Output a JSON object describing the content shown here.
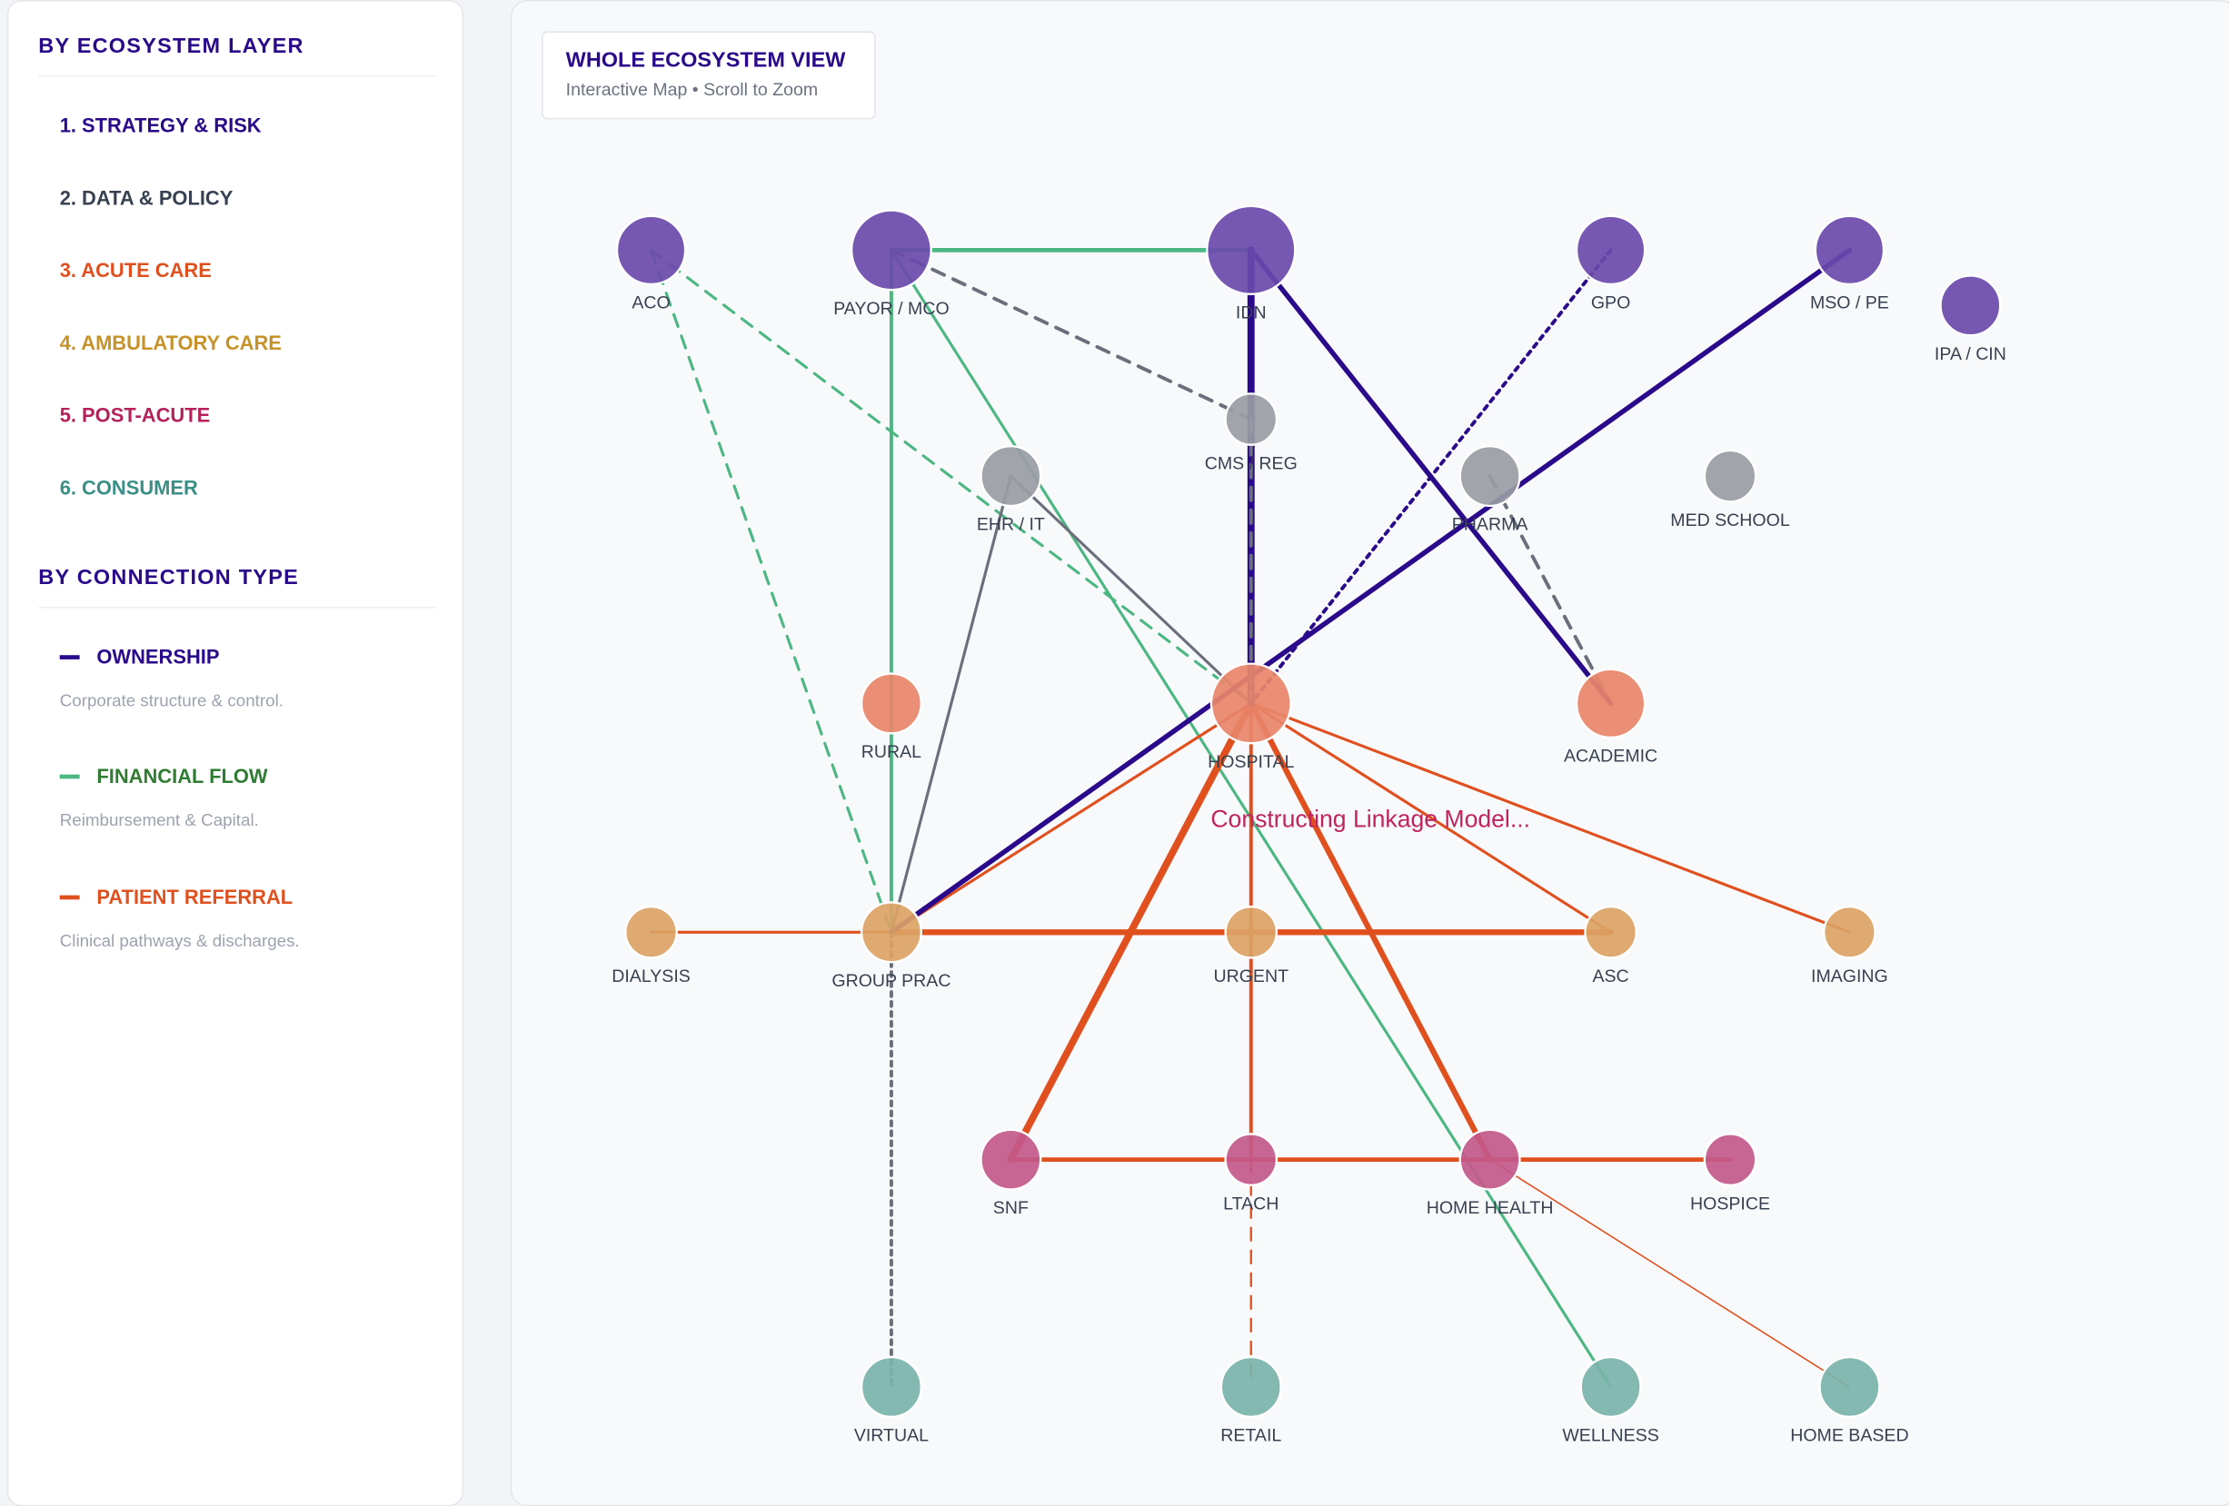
{
  "sidebar": {
    "layer_title": "BY ECOSYSTEM LAYER",
    "layers": [
      {
        "label": "1. STRATEGY & RISK",
        "color": "#2a0a8a"
      },
      {
        "label": "2. DATA & POLICY",
        "color": "#374151"
      },
      {
        "label": "3. ACUTE CARE",
        "color": "#e0501f"
      },
      {
        "label": "4. AMBULATORY CARE",
        "color": "#c8922a"
      },
      {
        "label": "5. POST-ACUTE",
        "color": "#b5215a"
      },
      {
        "label": "6. CONSUMER",
        "color": "#3a8f86"
      }
    ],
    "connection_title": "BY CONNECTION TYPE",
    "connections": [
      {
        "label": "OWNERSHIP",
        "desc": "Corporate structure & control.",
        "color": "#2a0a8a",
        "text_color": "#2a0a8a"
      },
      {
        "label": "FINANCIAL FLOW",
        "desc": "Reimbursement & Capital.",
        "color": "#4cb782",
        "text_color": "#2e7d32"
      },
      {
        "label": "PATIENT REFERRAL",
        "desc": "Clinical pathways & discharges.",
        "color": "#e0501f",
        "text_color": "#e0501f"
      }
    ]
  },
  "map": {
    "title": "WHOLE ECOSYSTEM VIEW",
    "subtitle": "Interactive Map • Scroll to Zoom",
    "status": "Constructing Linkage Model...",
    "layer_colors": {
      "strategy": "#6a4aad",
      "data": "#9a9ca4",
      "acute": "#e8866a",
      "ambulatory": "#dca365",
      "postacute": "#c2588a",
      "consumer": "#78b3a9"
    },
    "edge_colors": {
      "ownership": "#2a0a8a",
      "financial": "#4cb782",
      "data": "#6b6f7b",
      "referral": "#e0501f"
    },
    "nodes": [
      {
        "id": "aco",
        "label": "ACO",
        "layer": "strategy"
      },
      {
        "id": "payor",
        "label": "PAYOR / MCO",
        "layer": "strategy"
      },
      {
        "id": "idn",
        "label": "IDN",
        "layer": "strategy"
      },
      {
        "id": "gpo",
        "label": "GPO",
        "layer": "strategy"
      },
      {
        "id": "mso",
        "label": "MSO / PE",
        "layer": "strategy"
      },
      {
        "id": "ipa",
        "label": "IPA / CIN",
        "layer": "strategy"
      },
      {
        "id": "cms",
        "label": "CMS / REG",
        "layer": "data"
      },
      {
        "id": "ehr",
        "label": "EHR / IT",
        "layer": "data"
      },
      {
        "id": "pharma",
        "label": "PHARMA",
        "layer": "data"
      },
      {
        "id": "medschool",
        "label": "MED SCHOOL",
        "layer": "data"
      },
      {
        "id": "rural",
        "label": "RURAL",
        "layer": "acute"
      },
      {
        "id": "hospital",
        "label": "HOSPITAL",
        "layer": "acute"
      },
      {
        "id": "academic",
        "label": "ACADEMIC",
        "layer": "acute"
      },
      {
        "id": "dialysis",
        "label": "DIALYSIS",
        "layer": "ambulatory"
      },
      {
        "id": "group",
        "label": "GROUP PRAC",
        "layer": "ambulatory"
      },
      {
        "id": "urgent",
        "label": "URGENT",
        "layer": "ambulatory"
      },
      {
        "id": "asc",
        "label": "ASC",
        "layer": "ambulatory"
      },
      {
        "id": "imaging",
        "label": "IMAGING",
        "layer": "ambulatory"
      },
      {
        "id": "snf",
        "label": "SNF",
        "layer": "postacute"
      },
      {
        "id": "ltach",
        "label": "LTACH",
        "layer": "postacute"
      },
      {
        "id": "homehealth",
        "label": "HOME HEALTH",
        "layer": "postacute"
      },
      {
        "id": "hospice",
        "label": "HOSPICE",
        "layer": "postacute"
      },
      {
        "id": "virtual",
        "label": "VIRTUAL",
        "layer": "consumer"
      },
      {
        "id": "retail",
        "label": "RETAIL",
        "layer": "consumer"
      },
      {
        "id": "wellness",
        "label": "WELLNESS",
        "layer": "consumer"
      },
      {
        "id": "homebased",
        "label": "HOME BASED",
        "layer": "consumer"
      }
    ],
    "edges": [
      {
        "from": "payor",
        "to": "idn",
        "type": "financial",
        "style": "solid"
      },
      {
        "from": "payor",
        "to": "group",
        "type": "financial",
        "style": "solid"
      },
      {
        "from": "payor",
        "to": "wellness",
        "type": "financial",
        "style": "solid"
      },
      {
        "from": "aco",
        "to": "group",
        "type": "financial",
        "style": "dashed"
      },
      {
        "from": "aco",
        "to": "hospital",
        "type": "financial",
        "style": "dashed"
      },
      {
        "from": "payor",
        "to": "cms",
        "type": "data",
        "style": "dashed"
      },
      {
        "from": "ehr",
        "to": "hospital",
        "type": "data",
        "style": "solid"
      },
      {
        "from": "ehr",
        "to": "group",
        "type": "data",
        "style": "solid"
      },
      {
        "from": "pharma",
        "to": "academic",
        "type": "data",
        "style": "dashed"
      },
      {
        "from": "group",
        "to": "virtual",
        "type": "data",
        "style": "dotted"
      },
      {
        "from": "dialysis",
        "to": "group",
        "type": "referral",
        "style": "solid"
      },
      {
        "from": "group",
        "to": "asc",
        "type": "referral",
        "style": "solid"
      },
      {
        "from": "hospital",
        "to": "group",
        "type": "referral",
        "style": "solid"
      },
      {
        "from": "hospital",
        "to": "snf",
        "type": "referral",
        "style": "solid"
      },
      {
        "from": "hospital",
        "to": "ltach",
        "type": "referral",
        "style": "solid"
      },
      {
        "from": "hospital",
        "to": "homehealth",
        "type": "referral",
        "style": "solid"
      },
      {
        "from": "hospital",
        "to": "asc",
        "type": "referral",
        "style": "solid"
      },
      {
        "from": "hospital",
        "to": "imaging",
        "type": "referral",
        "style": "solid"
      },
      {
        "from": "snf",
        "to": "hospice",
        "type": "referral",
        "style": "solid"
      },
      {
        "from": "homehealth",
        "to": "homebased",
        "type": "referral",
        "style": "solid"
      },
      {
        "from": "ltach",
        "to": "retail",
        "type": "referral",
        "style": "dashed"
      },
      {
        "from": "idn",
        "to": "hospital",
        "type": "ownership",
        "style": "solid"
      },
      {
        "from": "cms",
        "to": "hospital",
        "type": "data",
        "style": "dashed"
      },
      {
        "from": "idn",
        "to": "academic",
        "type": "ownership",
        "style": "solid"
      },
      {
        "from": "mso",
        "to": "group",
        "type": "ownership",
        "style": "solid"
      },
      {
        "from": "gpo",
        "to": "hospital",
        "type": "ownership",
        "style": "dotted"
      }
    ]
  }
}
